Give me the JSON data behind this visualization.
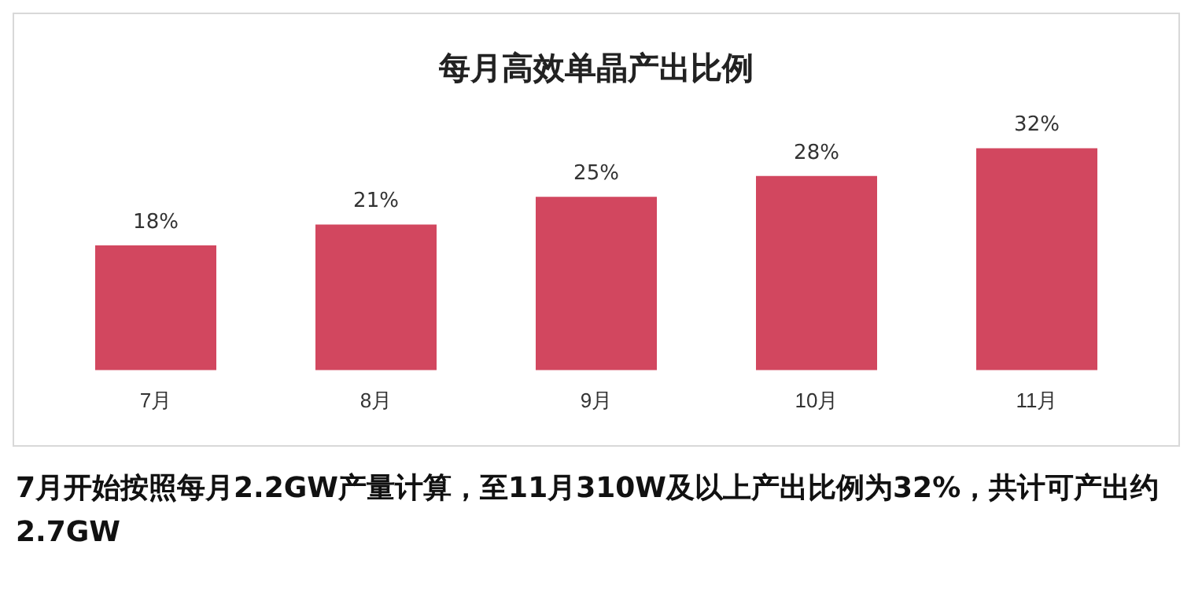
{
  "chart_data": {
    "type": "bar",
    "title": "每月高效单晶产出比例",
    "categories": [
      "7月",
      "8月",
      "9月",
      "10月",
      "11月"
    ],
    "values": [
      18,
      21,
      25,
      28,
      32
    ],
    "value_labels": [
      "18%",
      "21%",
      "25%",
      "28%",
      "32%"
    ],
    "color": "#d2475f",
    "tick_labels": "x",
    "grid": false,
    "legend": false,
    "annotations": [
      "7月开始按照每月2.2GW产量计算，至11月310W及以上产出比例为32%，共计可产出约2.7GW"
    ]
  }
}
